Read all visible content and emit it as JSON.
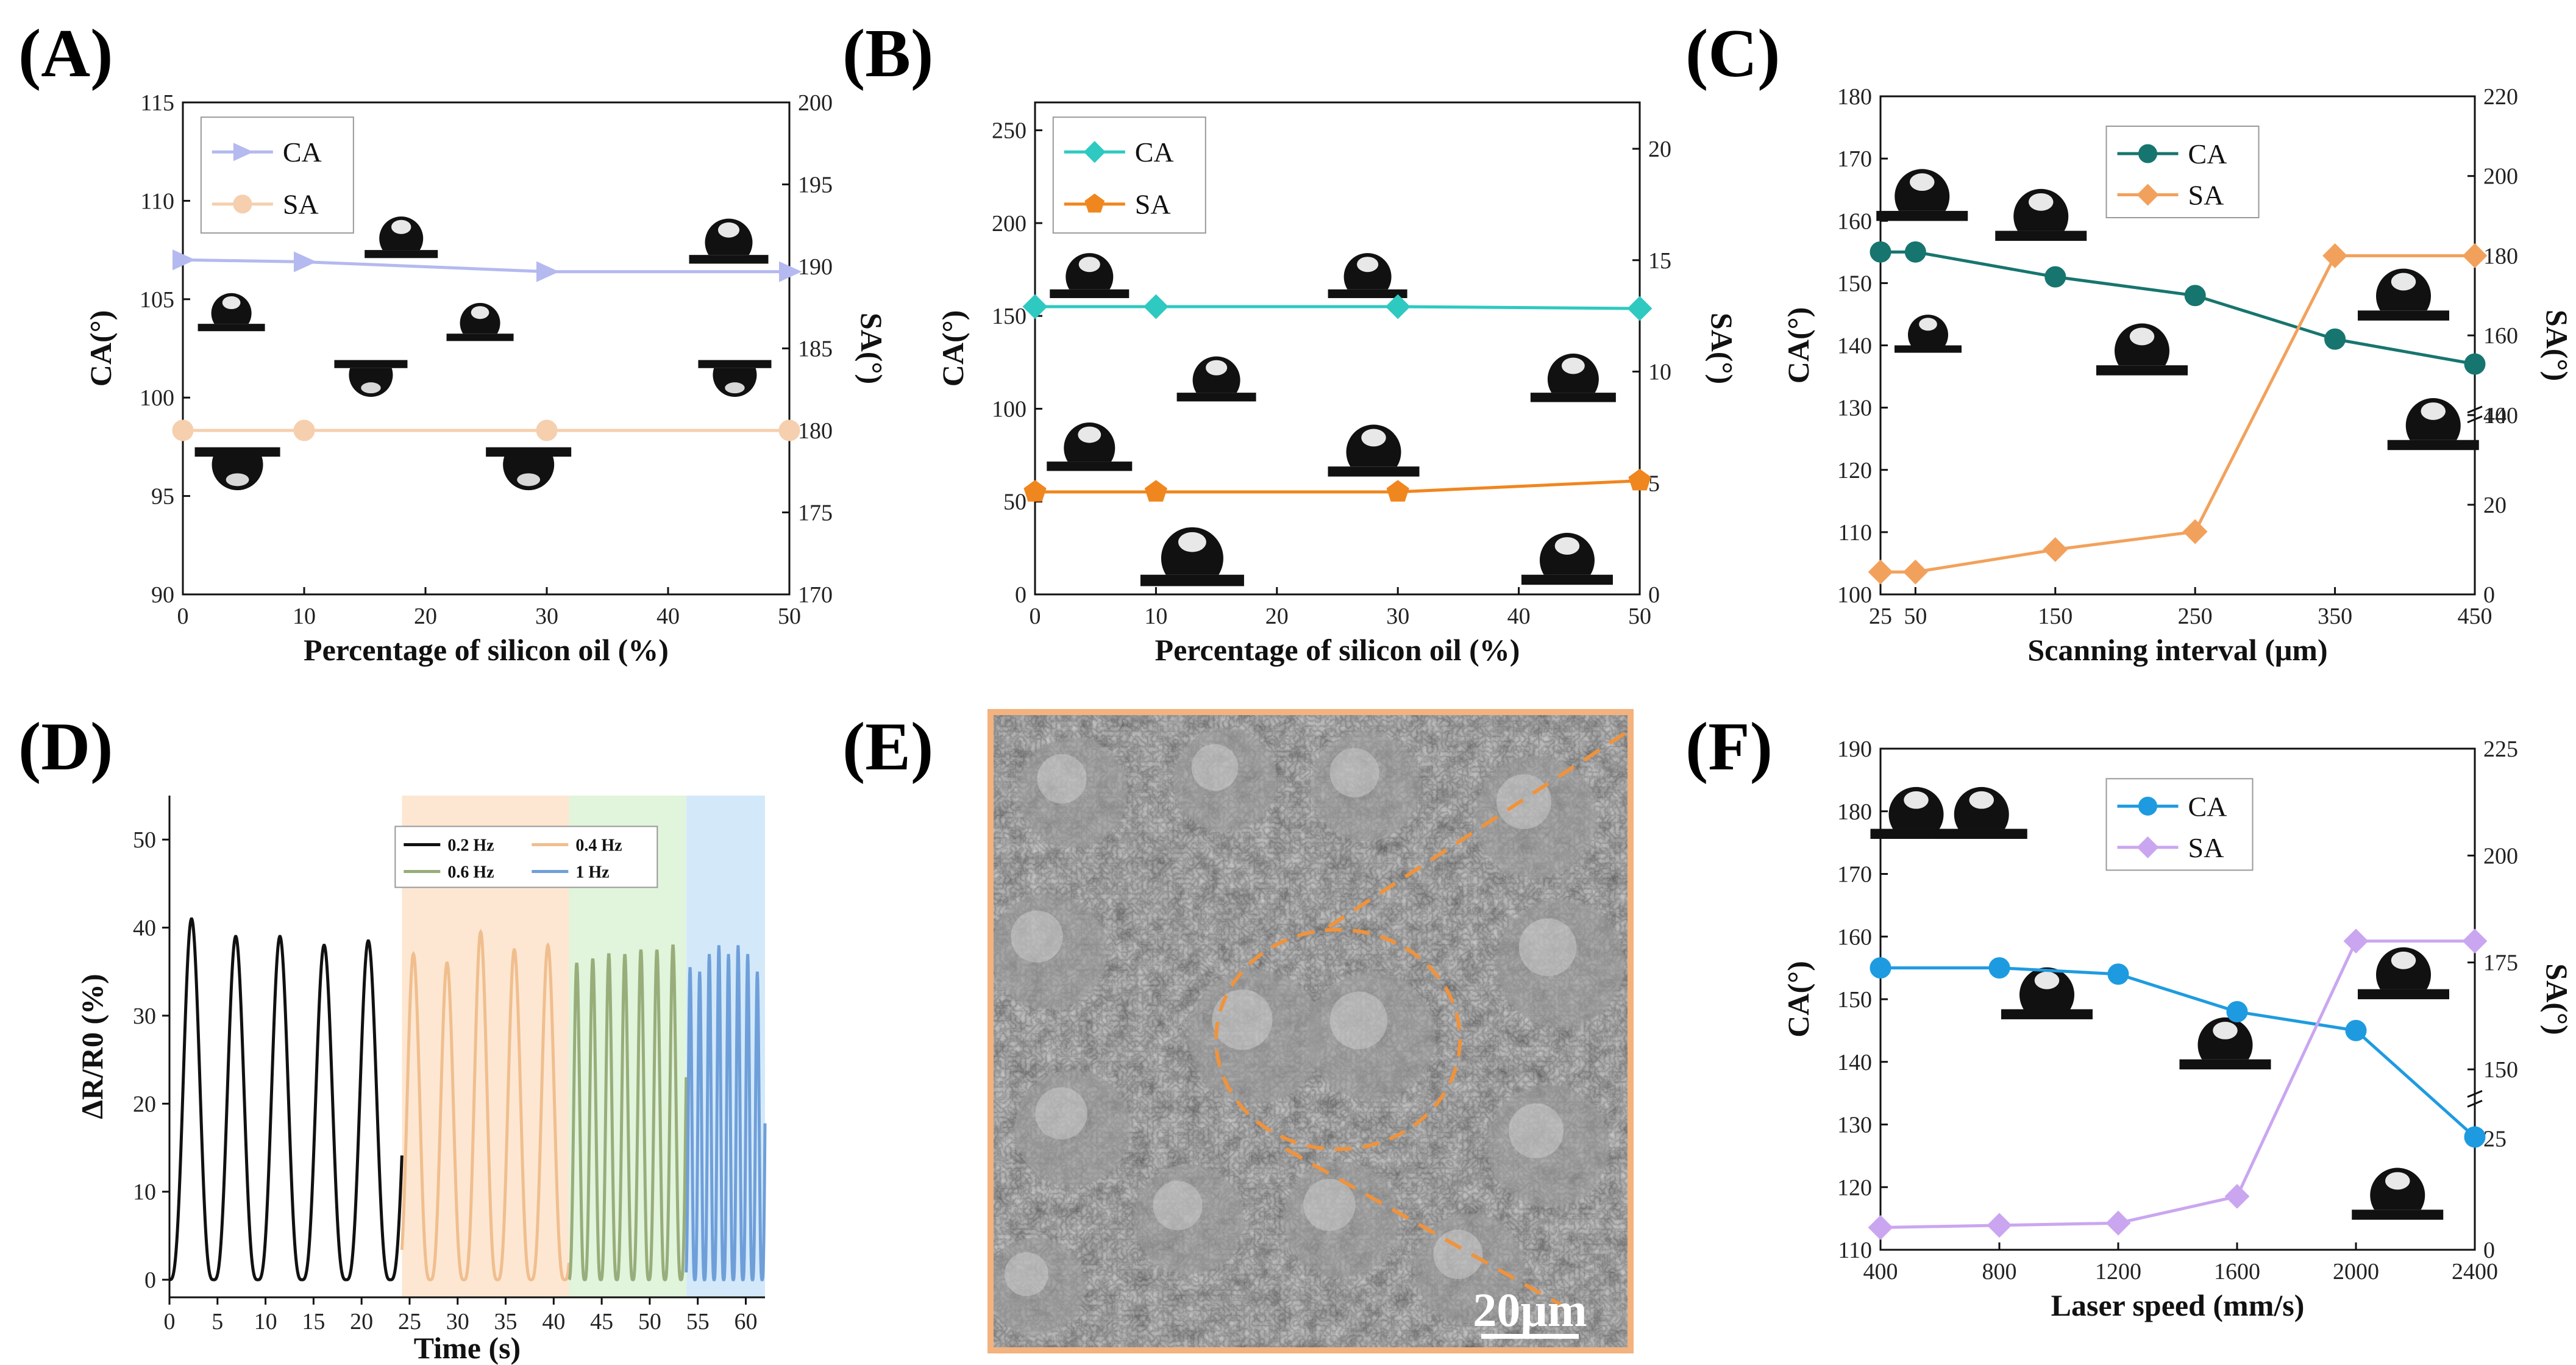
{
  "chart_data": [
    {
      "panel": "(A)",
      "type": "line",
      "xlabel": "Percentage of silicon oil (%)",
      "ylabel": "CA(°)",
      "y2label": "SA(°)",
      "xlim": [
        0,
        50
      ],
      "ylim": [
        90,
        115
      ],
      "y2lim": [
        170,
        200
      ],
      "xticks": [
        0,
        10,
        20,
        30,
        40,
        50
      ],
      "yticks": [
        90,
        95,
        100,
        105,
        110,
        115
      ],
      "y2ticks": [
        170,
        175,
        180,
        185,
        190,
        195,
        200
      ],
      "series": [
        {
          "name": "CA",
          "axis": "left",
          "color": "#b4b9ef",
          "marker": "triangle",
          "x": [
            0,
            10,
            30,
            50
          ],
          "values": [
            107,
            106.9,
            106.4,
            106.4
          ]
        },
        {
          "name": "SA",
          "axis": "right",
          "color": "#f5cfae",
          "marker": "circle",
          "x": [
            0,
            10,
            30,
            50
          ],
          "values": [
            180,
            180,
            180,
            180
          ]
        }
      ]
    },
    {
      "panel": "(B)",
      "type": "line",
      "xlabel": "Percentage of silicon oil (%)",
      "ylabel": "CA(°)",
      "y2label": "SA(°)",
      "xlim": [
        0,
        50
      ],
      "ylim": [
        0,
        265
      ],
      "y2lim": [
        0,
        22.08
      ],
      "xticks": [
        0,
        10,
        20,
        30,
        40,
        50
      ],
      "yticks": [
        0,
        50,
        100,
        150,
        200,
        250
      ],
      "y2ticks": [
        0,
        5,
        10,
        15,
        20
      ],
      "series": [
        {
          "name": "CA",
          "axis": "left",
          "color": "#2ec9c0",
          "marker": "diamond",
          "x": [
            0,
            10,
            30,
            50
          ],
          "values": [
            155,
            155,
            155,
            154
          ]
        },
        {
          "name": "SA",
          "axis": "right",
          "color": "#f0861e",
          "marker": "pentagon",
          "x": [
            0,
            10,
            30,
            50
          ],
          "values": [
            4.6,
            4.6,
            4.6,
            5.1
          ]
        }
      ]
    },
    {
      "panel": "(C)",
      "type": "line",
      "xlabel": "Scanning interval (μm)",
      "ylabel": "CA(°)",
      "y2label": "SA(°)",
      "xlim": [
        25,
        450
      ],
      "ylim": [
        100,
        180
      ],
      "y2lim": [
        0,
        220
      ],
      "xticks": [
        25,
        50,
        150,
        250,
        350,
        450
      ],
      "yticks": [
        100,
        110,
        120,
        130,
        140,
        150,
        160,
        170,
        180
      ],
      "y2ticks": [
        0,
        20,
        40,
        140,
        160,
        180,
        200,
        220
      ],
      "series": [
        {
          "name": "CA",
          "axis": "left",
          "color": "#17756f",
          "marker": "circle",
          "x": [
            25,
            50,
            150,
            250,
            350,
            450
          ],
          "values": [
            155,
            155,
            151,
            148,
            141,
            137
          ]
        },
        {
          "name": "SA",
          "axis": "right",
          "color": "#f2a15c",
          "marker": "diamond",
          "x": [
            25,
            50,
            150,
            250,
            350,
            450
          ],
          "values": [
            5,
            5,
            10,
            14,
            180,
            180
          ]
        }
      ]
    },
    {
      "panel": "(D)",
      "type": "line",
      "xlabel": "Time (s)",
      "ylabel": "ΔR/R0 (%)",
      "xlim": [
        0,
        62
      ],
      "ylim": [
        -2,
        55
      ],
      "xticks": [
        0,
        5,
        10,
        15,
        20,
        25,
        30,
        35,
        40,
        45,
        50,
        55,
        60
      ],
      "yticks": [
        0,
        10,
        20,
        30,
        40,
        50
      ],
      "series": [
        {
          "name": "0.2 Hz",
          "color": "#111111",
          "t_start": 0,
          "t_end": 24.2,
          "period": 4.6,
          "first_peak": 2.3,
          "peaks": [
            41,
            39,
            39,
            38,
            38.5
          ]
        },
        {
          "name": "0.4 Hz",
          "color": "#f0be8e",
          "t_start": 24.2,
          "t_end": 41.6,
          "period": 3.5,
          "first_peak": 25.4,
          "peaks": [
            37,
            36,
            39.5,
            37.5,
            38
          ]
        },
        {
          "name": "0.6 Hz",
          "color": "#98ad7a",
          "t_start": 41.6,
          "t_end": 53.8,
          "period": 1.67,
          "first_peak": 42.4,
          "peaks": [
            36,
            36.5,
            37,
            37,
            37.5,
            37.5,
            38
          ]
        },
        {
          "name": "1 Hz",
          "color": "#6f9fd9",
          "t_start": 53.8,
          "t_end": 62,
          "period": 1.0,
          "first_peak": 54.2,
          "peaks": [
            35.5,
            35,
            37,
            38,
            37,
            38,
            37,
            35
          ]
        }
      ],
      "bands": [
        {
          "name": "0.4 Hz",
          "color": "#fde7d2",
          "from": 24.2,
          "to": 41.6
        },
        {
          "name": "0.6 Hz",
          "color": "#e1f4dc",
          "from": 41.6,
          "to": 53.8
        },
        {
          "name": "1 Hz",
          "color": "#d3e9fa",
          "from": 53.8,
          "to": 62
        }
      ]
    },
    {
      "panel": "(E)",
      "type": "image",
      "scale_bar": "20μm"
    },
    {
      "panel": "(F)",
      "type": "line",
      "xlabel": "Laser speed (mm/s)",
      "ylabel": "CA(°)",
      "y2label": "SA(°)",
      "xlim": [
        400,
        2400
      ],
      "ylim": [
        110,
        190
      ],
      "y2lim": [
        0,
        225
      ],
      "xticks": [
        400,
        800,
        1200,
        1600,
        2000,
        2400
      ],
      "yticks": [
        110,
        120,
        130,
        140,
        150,
        160,
        170,
        180,
        190
      ],
      "y2ticks": [
        0,
        25,
        150,
        175,
        200,
        225
      ],
      "series": [
        {
          "name": "CA",
          "axis": "left",
          "color": "#1e9be0",
          "marker": "circle",
          "x": [
            400,
            800,
            1200,
            1600,
            2000,
            2400
          ],
          "values": [
            155,
            155,
            154,
            148,
            145,
            128
          ]
        },
        {
          "name": "SA",
          "axis": "right",
          "color": "#caa6f0",
          "marker": "diamond",
          "x": [
            400,
            800,
            1200,
            1600,
            2000,
            2400
          ],
          "values": [
            5,
            5.5,
            6,
            12,
            180,
            180
          ]
        }
      ]
    }
  ]
}
